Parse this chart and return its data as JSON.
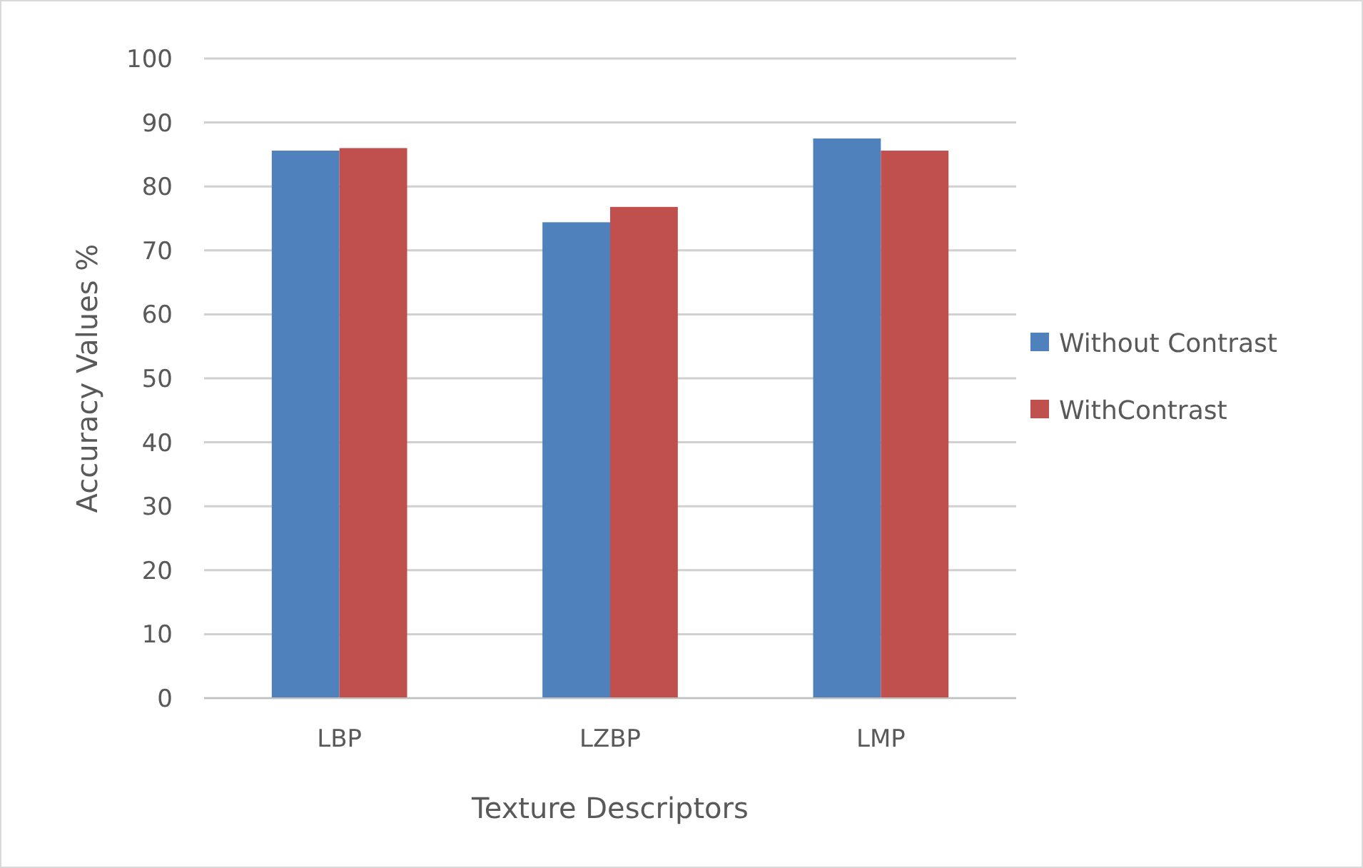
{
  "chart_data": {
    "type": "bar",
    "xlabel": "Texture Descriptors",
    "ylabel": "Accuracy Values %",
    "categories": [
      "LBP",
      "LZBP",
      "LMP"
    ],
    "series": [
      {
        "name": "Without Contrast",
        "color": "#4f81bd",
        "values": [
          85.6,
          74.4,
          87.5
        ]
      },
      {
        "name": "WithContrast",
        "color": "#c0504d",
        "values": [
          86.0,
          76.8,
          85.6
        ]
      }
    ],
    "ylim": [
      0,
      100
    ],
    "yticks": [
      0,
      10,
      20,
      30,
      40,
      50,
      60,
      70,
      80,
      90,
      100
    ],
    "grid": "y",
    "legend": "right"
  }
}
